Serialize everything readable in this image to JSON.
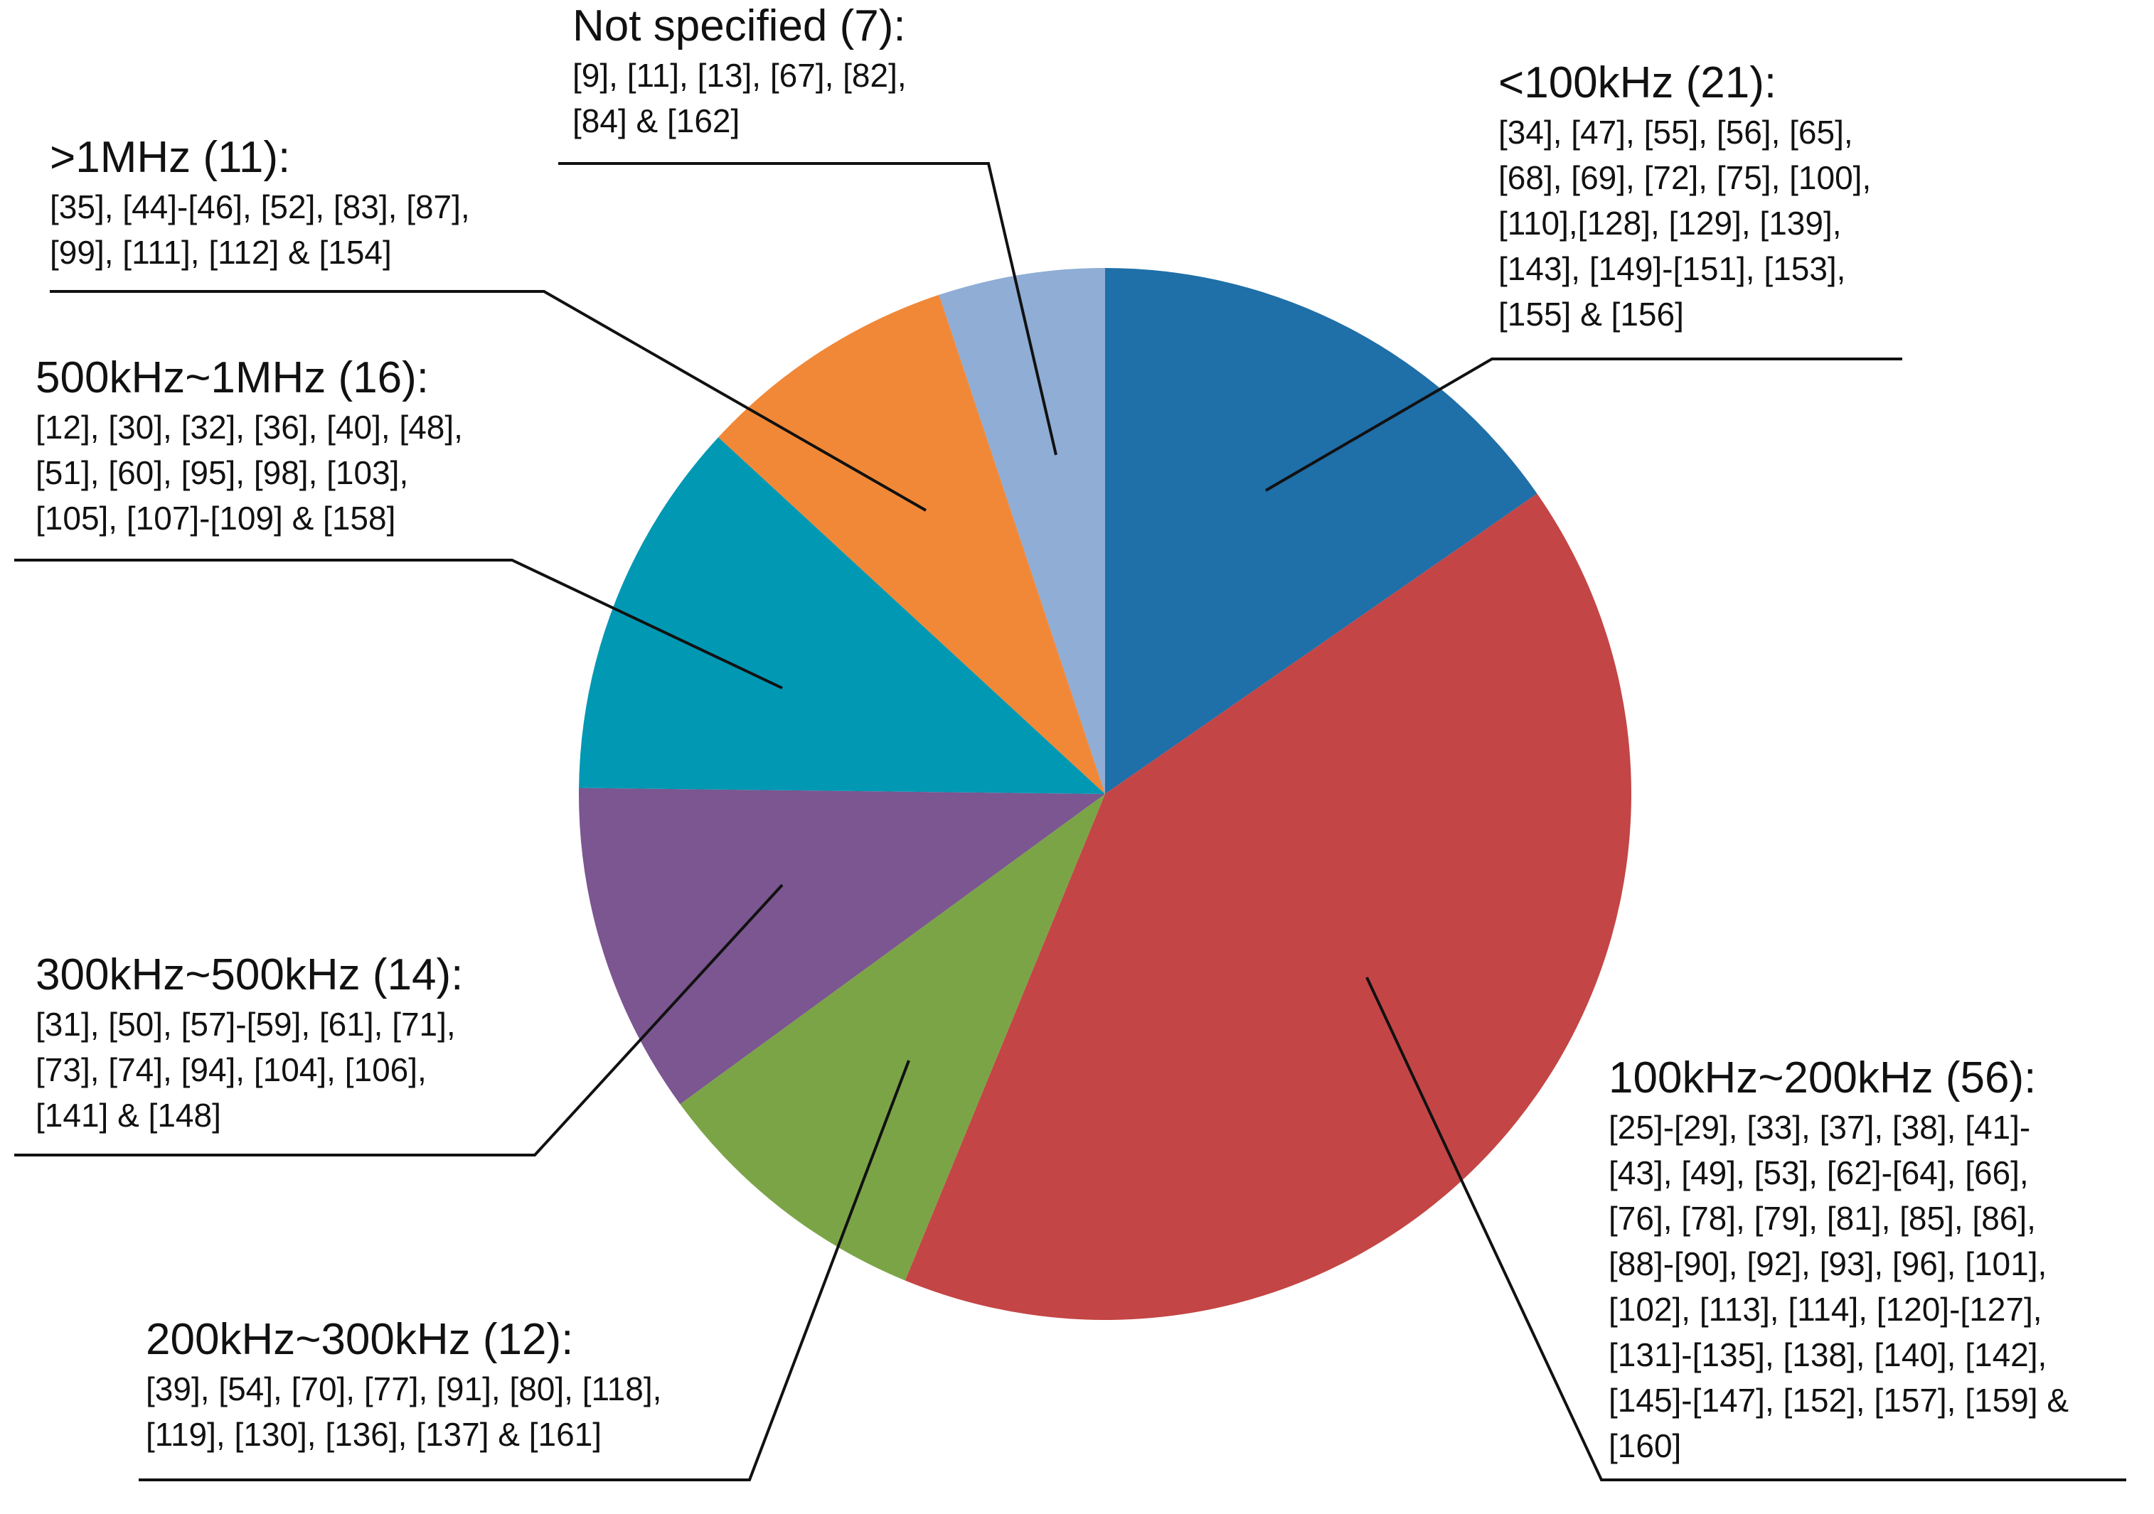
{
  "chart_data": {
    "type": "pie",
    "title": "",
    "slices": [
      {
        "label": "<100kHz",
        "count": 21,
        "color": "#1F6FA8",
        "title_text": "<100kHz (21):",
        "refs": [
          "[34], [47], [55], [56], [65],",
          "[68], [69], [72], [75], [100],",
          "[110],[128], [129], [139],",
          "[143], [149]-[151], [153],",
          "[155] & [156]"
        ]
      },
      {
        "label": "100kHz~200kHz",
        "count": 56,
        "color": "#C44545",
        "title_text": "100kHz~200kHz (56):",
        "refs": [
          "[25]-[29], [33], [37], [38], [41]-",
          "[43], [49], [53], [62]-[64], [66],",
          "[76], [78], [79], [81], [85], [86],",
          "[88]-[90], [92], [93], [96], [101],",
          "[102], [113], [114], [120]-[127],",
          "[131]-[135], [138], [140], [142],",
          "[145]-[147], [152], [157], [159] &",
          "[160]"
        ]
      },
      {
        "label": "200kHz~300kHz",
        "count": 12,
        "color": "#7BA447",
        "title_text": "200kHz~300kHz (12):",
        "refs": [
          "[39], [54], [70], [77], [91], [80], [118],",
          "[119], [130], [136], [137] & [161]"
        ]
      },
      {
        "label": "300kHz~500kHz",
        "count": 14,
        "color": "#7B5690",
        "title_text": "300kHz~500kHz (14):",
        "refs": [
          "[31], [50], [57]-[59], [61], [71],",
          "[73], [74], [94], [104], [106],",
          "[141] & [148]"
        ]
      },
      {
        "label": "500kHz~1MHz",
        "count": 16,
        "color": "#0098B3",
        "title_text": "500kHz~1MHz (16):",
        "refs": [
          "[12], [30], [32], [36], [40], [48],",
          "[51], [60], [95], [98], [103],",
          "[105], [107]-[109] & [158]"
        ]
      },
      {
        "label": ">1MHz",
        "count": 11,
        "color": "#F08838",
        "title_text": ">1MHz (11):",
        "refs": [
          "[35], [44]-[46], [52], [83], [87],",
          "[99], [111], [112] & [154]"
        ]
      },
      {
        "label": "Not specified",
        "count": 7,
        "color": "#8FADD5",
        "title_text": "Not specified (7):",
        "refs": [
          "[9], [11], [13], [67], [82],",
          "[84] & [162]"
        ]
      }
    ],
    "start_direction": "12 o'clock",
    "rotation": "clockwise",
    "legend": "none",
    "labels": "callouts with leader lines"
  }
}
